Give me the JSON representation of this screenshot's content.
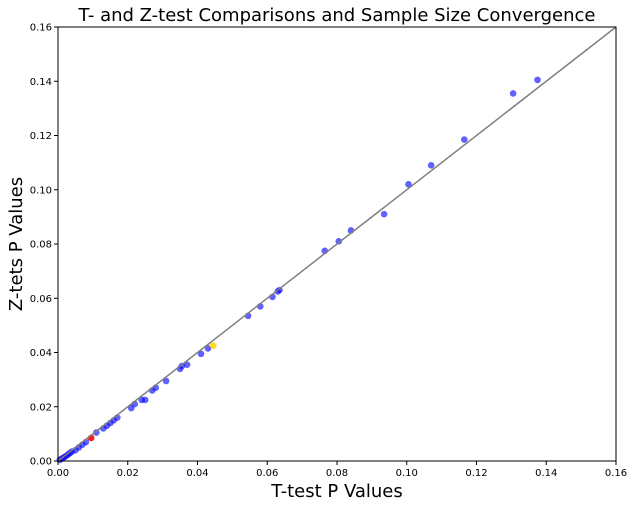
{
  "chart_data": {
    "type": "scatter",
    "title": "T- and Z-test Comparisons and Sample Size Convergence",
    "xlabel": "T-test P Values",
    "ylabel": "Z-tets P Values",
    "xlim": [
      0,
      0.16
    ],
    "ylim": [
      0,
      0.16
    ],
    "xticks": [
      "0.00",
      "0.02",
      "0.04",
      "0.06",
      "0.08",
      "0.10",
      "0.12",
      "0.14",
      "0.16"
    ],
    "yticks": [
      "0.00",
      "0.02",
      "0.04",
      "0.06",
      "0.08",
      "0.10",
      "0.12",
      "0.14",
      "0.16"
    ],
    "grid": false,
    "reference_line": {
      "from": [
        0,
        0
      ],
      "to": [
        0.16,
        0.16
      ],
      "color": "#808080"
    },
    "colors": {
      "points": "#0000ff",
      "highlight_red": "#ff0000",
      "highlight_gold": "#ffd700"
    },
    "series": [
      {
        "color": "#0000ff",
        "points": [
          [
            0.0005,
            0.0004
          ],
          [
            0.001,
            0.0008
          ],
          [
            0.0015,
            0.0012
          ],
          [
            0.002,
            0.0016
          ],
          [
            0.0025,
            0.002
          ],
          [
            0.003,
            0.0025
          ],
          [
            0.0035,
            0.003
          ],
          [
            0.004,
            0.0035
          ],
          [
            0.005,
            0.004
          ],
          [
            0.006,
            0.005
          ],
          [
            0.007,
            0.006
          ],
          [
            0.008,
            0.007
          ],
          [
            0.011,
            0.0105
          ],
          [
            0.013,
            0.012
          ],
          [
            0.014,
            0.013
          ],
          [
            0.015,
            0.014
          ],
          [
            0.016,
            0.015
          ],
          [
            0.017,
            0.016
          ],
          [
            0.021,
            0.0195
          ],
          [
            0.022,
            0.021
          ],
          [
            0.024,
            0.0225
          ],
          [
            0.025,
            0.0225
          ],
          [
            0.027,
            0.026
          ],
          [
            0.028,
            0.027
          ],
          [
            0.031,
            0.0295
          ],
          [
            0.035,
            0.034
          ],
          [
            0.0355,
            0.035
          ],
          [
            0.037,
            0.0355
          ],
          [
            0.041,
            0.0395
          ],
          [
            0.043,
            0.0415
          ],
          [
            0.0545,
            0.0535
          ],
          [
            0.058,
            0.057
          ],
          [
            0.0615,
            0.0605
          ],
          [
            0.063,
            0.0625
          ],
          [
            0.0635,
            0.063
          ],
          [
            0.0765,
            0.0775
          ],
          [
            0.0805,
            0.081
          ],
          [
            0.084,
            0.085
          ],
          [
            0.0935,
            0.091
          ],
          [
            0.1005,
            0.102
          ],
          [
            0.107,
            0.109
          ],
          [
            0.1165,
            0.1185
          ],
          [
            0.1305,
            0.1355
          ],
          [
            0.1375,
            0.1405
          ]
        ]
      },
      {
        "color": "#ff0000",
        "points": [
          [
            0.0095,
            0.0085
          ]
        ]
      },
      {
        "color": "#ffd700",
        "points": [
          [
            0.0445,
            0.0425
          ]
        ]
      }
    ]
  }
}
